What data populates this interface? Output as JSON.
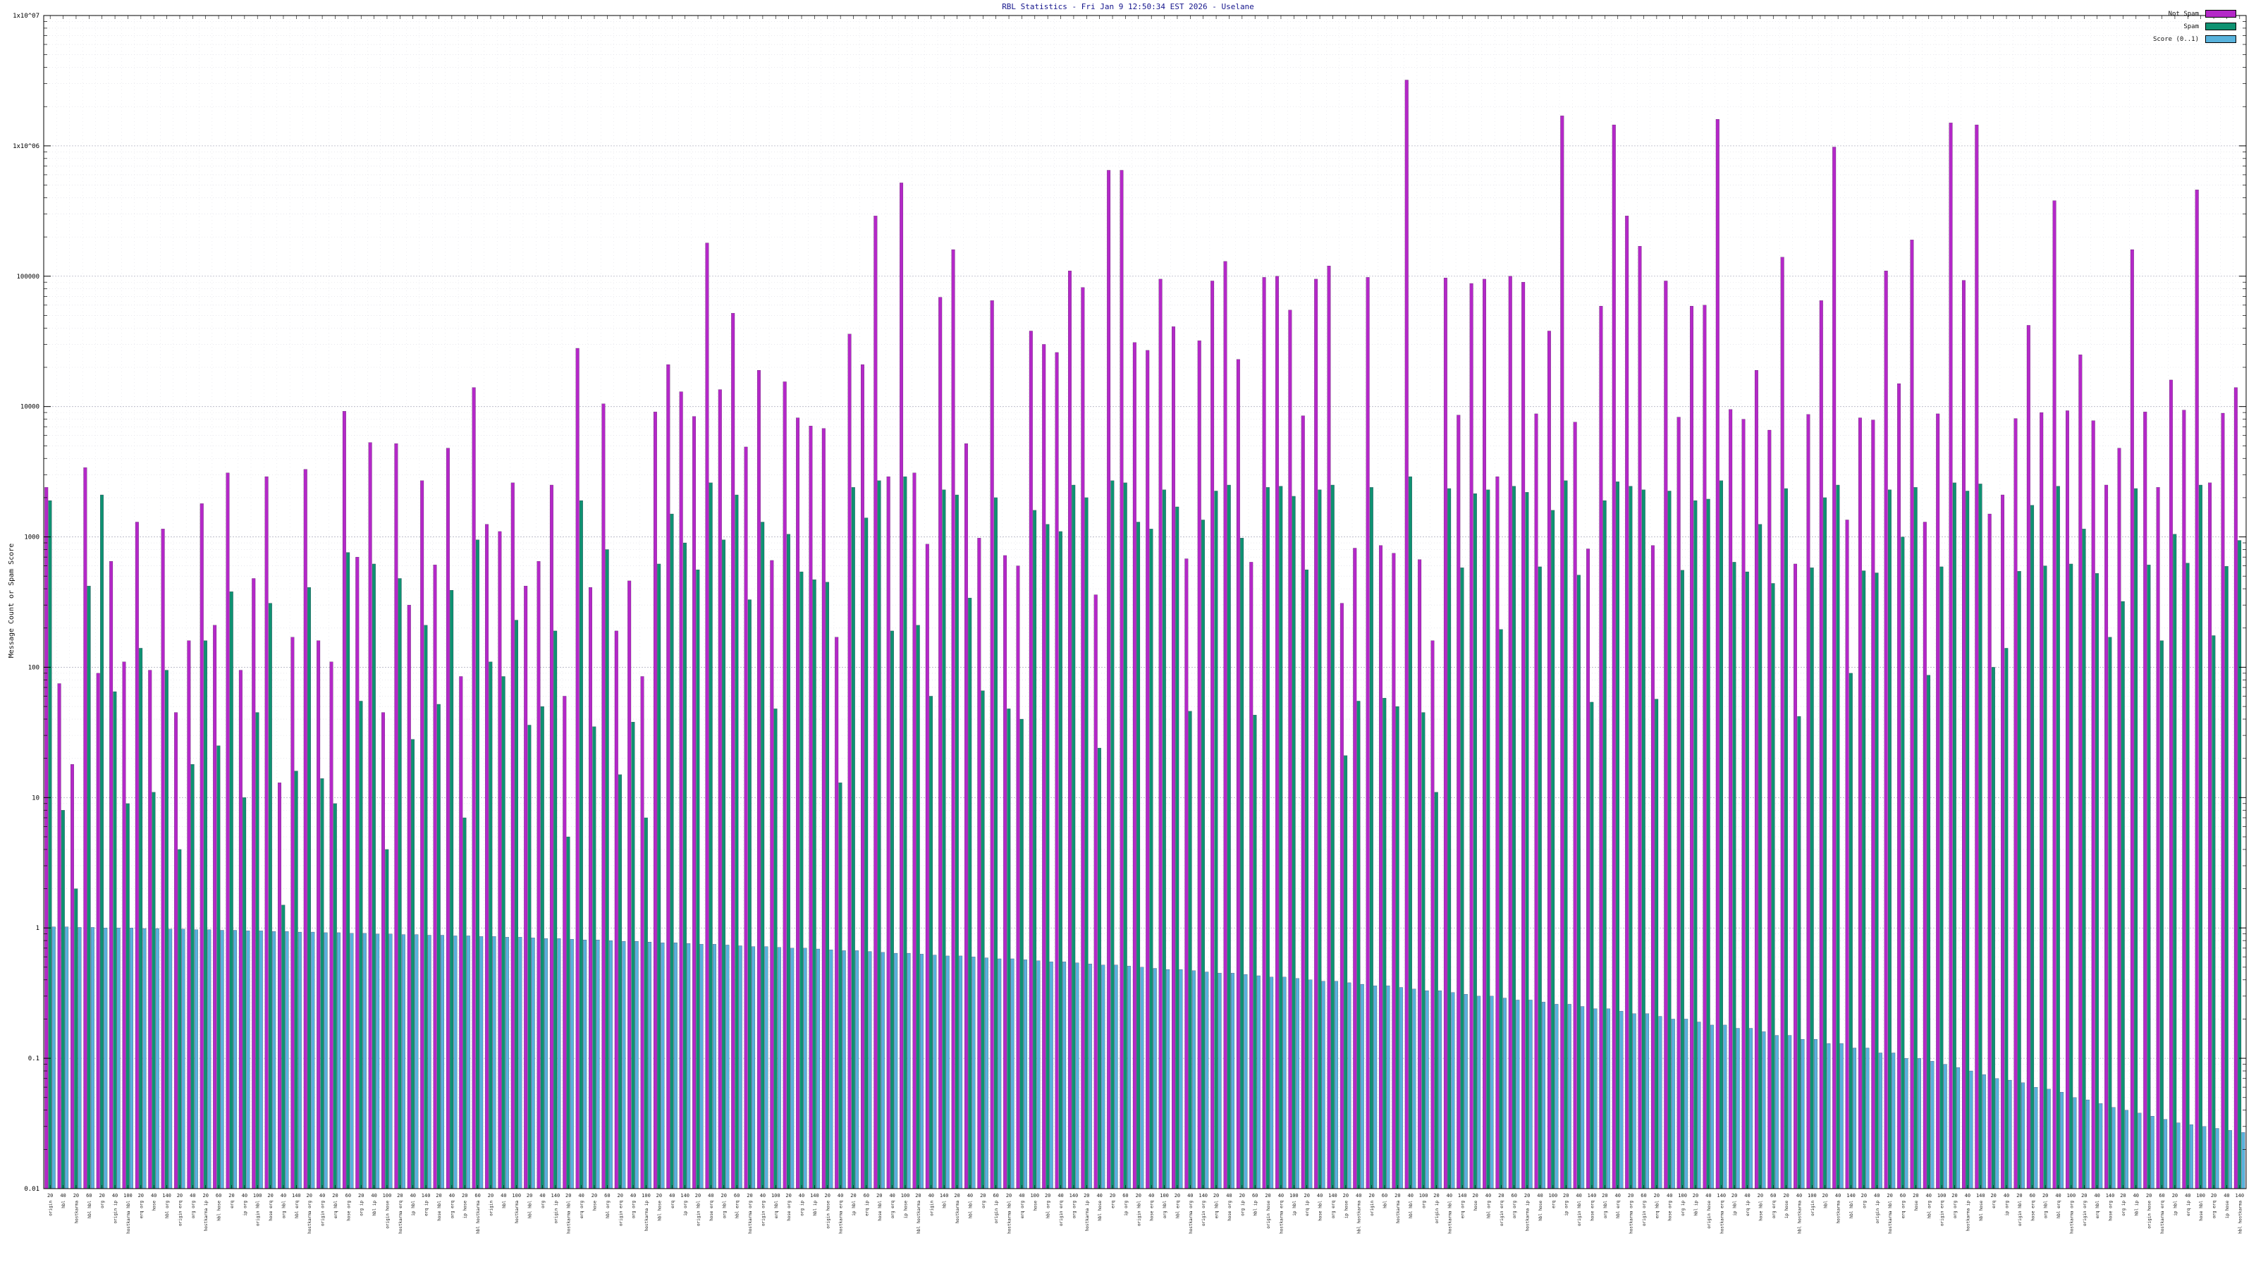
{
  "chart_data": {
    "type": "bar",
    "title": "RBL Statistics - Fri Jan  9 12:50:34 EST 2026 - Uselane",
    "xlabel": "",
    "ylabel": "Message Count or Spam Score",
    "y_scale": "log",
    "ylim": [
      0.01,
      10000000
    ],
    "ytick_labels": [
      "0.01",
      "0.1",
      "1",
      "10",
      "100",
      "1000",
      "10000",
      "100000",
      "1x10^06",
      "1x10^07"
    ],
    "grid": true,
    "legend_position": "top-right",
    "categories": [
      "origin",
      "hbl",
      "hostkarma",
      "hbl hbl",
      "org",
      "origin ip",
      "hostkarma hbl",
      "erq org",
      "hose",
      "hbl org",
      "origin erq",
      "org org",
      "hostkarma ip",
      "hbl hose",
      "erq",
      "ip org",
      "origin hbl",
      "hose erq",
      "org hbl",
      "hbl erq",
      "hostkarma org",
      "origin org",
      "erq hbl",
      "hose org",
      "org ip",
      "hbl ip",
      "origin hose",
      "hostkarma erq",
      "ip hbl",
      "erq ip",
      "hose hbl",
      "org erq",
      "ip hose",
      "hbl hostkarma",
      "origin",
      "hbl",
      "hostkarma",
      "hbl hbl",
      "org",
      "origin ip",
      "hostkarma hbl",
      "erq org",
      "hose",
      "hbl org",
      "origin erq",
      "org org",
      "hostkarma ip",
      "hbl hose",
      "erq",
      "ip org",
      "origin hbl",
      "hose erq",
      "org hbl",
      "hbl erq",
      "hostkarma org",
      "origin org",
      "erq hbl",
      "hose org",
      "org ip",
      "hbl ip",
      "origin hose",
      "hostkarma erq",
      "ip hbl",
      "erq ip",
      "hose hbl",
      "org erq",
      "ip hose",
      "hbl hostkarma",
      "origin",
      "hbl",
      "hostkarma",
      "hbl hbl",
      "org",
      "origin ip",
      "hostkarma hbl",
      "erq org",
      "hose",
      "hbl org",
      "origin erq",
      "org org",
      "hostkarma ip",
      "hbl hose",
      "erq",
      "ip org",
      "origin hbl",
      "hose erq",
      "org hbl",
      "hbl erq",
      "hostkarma org",
      "origin org",
      "erq hbl",
      "hose org",
      "org ip",
      "hbl ip",
      "origin hose",
      "hostkarma erq",
      "ip hbl",
      "erq ip",
      "hose hbl",
      "org erq",
      "ip hose",
      "hbl hostkarma",
      "origin",
      "hbl",
      "hostkarma",
      "hbl hbl",
      "org",
      "origin ip",
      "hostkarma hbl",
      "erq org",
      "hose",
      "hbl org",
      "origin erq",
      "org org",
      "hostkarma ip",
      "hbl hose",
      "erq",
      "ip org",
      "origin hbl",
      "hose erq",
      "org hbl",
      "hbl erq",
      "hostkarma org",
      "origin org",
      "erq hbl",
      "hose org",
      "org ip",
      "hbl ip",
      "origin hose",
      "hostkarma erq",
      "ip hbl",
      "erq ip",
      "hose hbl",
      "org erq",
      "ip hose",
      "hbl hostkarma",
      "origin",
      "hbl",
      "hostkarma",
      "hbl hbl",
      "org",
      "origin ip",
      "hostkarma hbl",
      "erq org",
      "hose",
      "hbl org",
      "origin erq",
      "org org",
      "hostkarma ip",
      "hbl hose",
      "erq",
      "ip org",
      "origin hbl",
      "hose erq",
      "org hbl",
      "hbl erq",
      "hostkarma org",
      "origin org",
      "erq hbl",
      "hose org",
      "org ip",
      "hbl ip",
      "origin hose",
      "hostkarma erq",
      "ip hbl",
      "erq ip",
      "hose hbl",
      "org erq",
      "ip hose",
      "hbl hostkarma"
    ],
    "xtick_numbers": [
      "20",
      "40",
      "20",
      "60",
      "20",
      "40",
      "100",
      "20",
      "40",
      "140",
      "20",
      "40",
      "20",
      "60",
      "20",
      "40",
      "100",
      "20",
      "40",
      "140",
      "20",
      "40",
      "20",
      "60",
      "20",
      "40",
      "100",
      "20",
      "40",
      "140",
      "20",
      "40",
      "20",
      "60",
      "20",
      "40",
      "100",
      "20",
      "40",
      "140",
      "20",
      "40",
      "20",
      "60",
      "20",
      "40",
      "100",
      "20",
      "40",
      "140",
      "20",
      "40",
      "20",
      "60",
      "20",
      "40",
      "100",
      "20",
      "40",
      "140",
      "20",
      "40",
      "20",
      "60",
      "20",
      "40",
      "100",
      "20",
      "40",
      "140",
      "20",
      "40",
      "20",
      "60",
      "20",
      "40",
      "100",
      "20",
      "40",
      "140",
      "20",
      "40",
      "20",
      "60",
      "20",
      "40",
      "100",
      "20",
      "40",
      "140",
      "20",
      "40",
      "20",
      "60",
      "20",
      "40",
      "100",
      "20",
      "40",
      "140",
      "20",
      "40",
      "20",
      "60",
      "20",
      "40",
      "100",
      "20",
      "40",
      "140",
      "20",
      "40",
      "20",
      "60",
      "20",
      "40",
      "100",
      "20",
      "40",
      "140",
      "20",
      "40",
      "20",
      "60",
      "20",
      "40",
      "100",
      "20",
      "40",
      "140",
      "20",
      "40",
      "20",
      "60",
      "20",
      "40",
      "100",
      "20",
      "40",
      "140",
      "20",
      "40",
      "20",
      "60",
      "20",
      "40",
      "100",
      "20",
      "40",
      "140",
      "20",
      "40",
      "20",
      "60",
      "20",
      "40",
      "100",
      "20",
      "40",
      "140",
      "20",
      "40",
      "20",
      "60",
      "20",
      "40",
      "100",
      "20",
      "40",
      "140"
    ],
    "series": [
      {
        "name": "Not Spam",
        "color": "#b428c8",
        "values": [
          2400,
          75,
          18,
          3400,
          90,
          650,
          110,
          1300,
          95,
          1150,
          45,
          160,
          1800,
          210,
          3100,
          95,
          480,
          2900,
          13,
          170,
          3300,
          160,
          110,
          9200,
          700,
          5300,
          45,
          5200,
          300,
          2700,
          610,
          4800,
          85,
          14000,
          1250,
          1100,
          2600,
          420,
          650,
          2500,
          60,
          28000,
          410,
          10500,
          190,
          460,
          85,
          9100,
          21000,
          13000,
          8400,
          180000,
          13500,
          52000,
          4900,
          19000,
          660,
          15500,
          8200,
          7100,
          6800,
          170,
          36000,
          21000,
          290000,
          2900,
          520000,
          3100,
          880,
          69000,
          160000,
          5200,
          980,
          65000,
          720,
          600,
          38000,
          30000,
          26000,
          110000,
          82000,
          360,
          650000,
          650000,
          31000,
          27000,
          95000,
          41000,
          680,
          32000,
          92000,
          130000,
          23000,
          640,
          98000,
          100000,
          55000,
          8500,
          95000,
          120000,
          310,
          820,
          98000,
          860,
          750,
          3200000,
          670,
          160,
          97000,
          8600,
          88000,
          95000,
          2900,
          100000,
          90000,
          8800,
          38000,
          1700000,
          7600,
          810,
          59000,
          1450000,
          290000,
          170000,
          860,
          92000,
          8300,
          59000,
          60000,
          1600000,
          9500,
          8000,
          19000,
          6600,
          140000,
          620,
          8700,
          65000,
          980000,
          1350,
          8200,
          7900,
          110000,
          15000,
          190000,
          1300,
          8800,
          1500000,
          93000,
          1450000,
          1500,
          2100,
          8100,
          42000,
          9000,
          380000,
          9300,
          25000,
          7800,
          2500,
          4800,
          160000,
          9100,
          2400,
          16000,
          9400,
          460000,
          2600,
          8900,
          14000
        ]
      },
      {
        "name": "Spam",
        "color": "#0e9272",
        "values": [
          1900,
          8,
          2,
          420,
          2100,
          65,
          9,
          140,
          11,
          95,
          4,
          18,
          160,
          25,
          380,
          10,
          45,
          310,
          1.5,
          16,
          410,
          14,
          9,
          760,
          55,
          620,
          4,
          480,
          28,
          210,
          52,
          390,
          7,
          950,
          110,
          85,
          230,
          36,
          50,
          190,
          5,
          1900,
          35,
          800,
          15,
          38,
          7,
          620,
          1500,
          900,
          560,
          2600,
          950,
          2100,
          330,
          1300,
          48,
          1050,
          540,
          470,
          450,
          13,
          2400,
          1400,
          2700,
          190,
          2900,
          210,
          60,
          2300,
          2100,
          340,
          66,
          2000,
          48,
          40,
          1600,
          1250,
          1100,
          2500,
          2000,
          24,
          2700,
          2600,
          1300,
          1150,
          2300,
          1700,
          46,
          1350,
          2250,
          2500,
          980,
          43,
          2400,
          2450,
          2050,
          560,
          2300,
          2500,
          21,
          55,
          2400,
          58,
          50,
          2900,
          45,
          11,
          2350,
          580,
          2150,
          2300,
          195,
          2450,
          2200,
          590,
          1600,
          2700,
          510,
          54,
          1900,
          2650,
          2450,
          2300,
          57,
          2250,
          555,
          1900,
          1950,
          2700,
          640,
          540,
          1250,
          440,
          2350,
          42,
          580,
          2000,
          2500,
          90,
          550,
          530,
          2300,
          1000,
          2400,
          87,
          590,
          2600,
          2250,
          2550,
          100,
          140,
          545,
          1750,
          600,
          2450,
          620,
          1150,
          525,
          170,
          320,
          2350,
          610,
          160,
          1050,
          630,
          2500,
          175,
          595,
          940
        ]
      },
      {
        "name": "Score (0..1)",
        "color": "#58b2dc",
        "values": [
          1.02,
          1.02,
          1.01,
          1.01,
          1.0,
          1.0,
          1.0,
          0.99,
          0.99,
          0.98,
          0.98,
          0.97,
          0.97,
          0.96,
          0.96,
          0.95,
          0.95,
          0.94,
          0.94,
          0.93,
          0.93,
          0.92,
          0.92,
          0.91,
          0.91,
          0.9,
          0.9,
          0.89,
          0.89,
          0.88,
          0.88,
          0.87,
          0.87,
          0.86,
          0.86,
          0.85,
          0.85,
          0.84,
          0.83,
          0.83,
          0.82,
          0.81,
          0.81,
          0.8,
          0.79,
          0.79,
          0.78,
          0.77,
          0.77,
          0.76,
          0.75,
          0.75,
          0.74,
          0.73,
          0.72,
          0.72,
          0.71,
          0.7,
          0.7,
          0.69,
          0.68,
          0.67,
          0.67,
          0.66,
          0.65,
          0.64,
          0.64,
          0.63,
          0.62,
          0.61,
          0.61,
          0.6,
          0.59,
          0.58,
          0.58,
          0.57,
          0.56,
          0.55,
          0.55,
          0.54,
          0.53,
          0.52,
          0.52,
          0.51,
          0.5,
          0.49,
          0.48,
          0.48,
          0.47,
          0.46,
          0.45,
          0.45,
          0.44,
          0.43,
          0.42,
          0.42,
          0.41,
          0.4,
          0.39,
          0.39,
          0.38,
          0.37,
          0.36,
          0.36,
          0.35,
          0.34,
          0.33,
          0.33,
          0.32,
          0.31,
          0.3,
          0.3,
          0.29,
          0.28,
          0.28,
          0.27,
          0.26,
          0.26,
          0.25,
          0.24,
          0.24,
          0.23,
          0.22,
          0.22,
          0.21,
          0.2,
          0.2,
          0.19,
          0.18,
          0.18,
          0.17,
          0.17,
          0.16,
          0.15,
          0.15,
          0.14,
          0.14,
          0.13,
          0.13,
          0.12,
          0.12,
          0.11,
          0.11,
          0.1,
          0.1,
          0.095,
          0.09,
          0.085,
          0.08,
          0.075,
          0.07,
          0.068,
          0.065,
          0.06,
          0.058,
          0.055,
          0.05,
          0.048,
          0.045,
          0.042,
          0.04,
          0.038,
          0.036,
          0.034,
          0.032,
          0.031,
          0.03,
          0.029,
          0.028,
          0.027
        ]
      }
    ]
  }
}
